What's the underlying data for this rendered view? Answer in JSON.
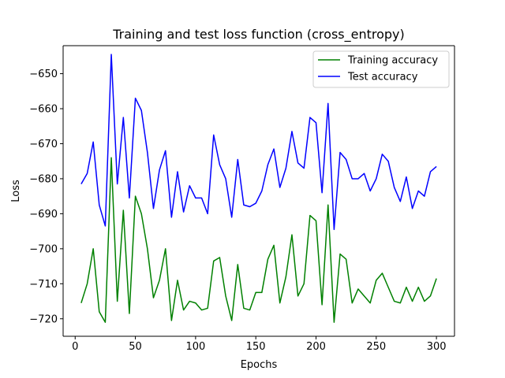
{
  "chart_data": {
    "type": "line",
    "title": "Training and test loss function (cross_entropy)",
    "xlabel": "Epochs",
    "ylabel": "Loss",
    "xlim": [
      -10,
      315
    ],
    "ylim": [
      -725,
      -642
    ],
    "xticks": [
      0,
      50,
      100,
      150,
      200,
      250,
      300
    ],
    "yticks": [
      -650,
      -660,
      -670,
      -680,
      -690,
      -700,
      -710,
      -720
    ],
    "legend_position": "top-right",
    "grid": false,
    "x": [
      5,
      10,
      15,
      20,
      25,
      30,
      35,
      40,
      45,
      50,
      55,
      60,
      65,
      70,
      75,
      80,
      85,
      90,
      95,
      100,
      105,
      110,
      115,
      120,
      125,
      130,
      135,
      140,
      145,
      150,
      155,
      160,
      165,
      170,
      175,
      180,
      185,
      190,
      195,
      200,
      205,
      210,
      215,
      220,
      225,
      230,
      235,
      240,
      245,
      250,
      255,
      260,
      265,
      270,
      275,
      280,
      285,
      290,
      295,
      300
    ],
    "series": [
      {
        "name": "Training accuracy",
        "color": "#008000",
        "values": [
          -715.5,
          -710,
          -700,
          -718,
          -721,
          -674,
          -715,
          -689,
          -718.5,
          -685,
          -690,
          -700,
          -714,
          -709,
          -700,
          -720.5,
          -709,
          -717.5,
          -715,
          -715.5,
          -717.5,
          -717,
          -703.5,
          -702.5,
          -713.5,
          -720.5,
          -704.5,
          -717,
          -717.5,
          -712.5,
          -712.5,
          -703,
          -699,
          -715.5,
          -708,
          -696,
          -713.5,
          -710,
          -690.5,
          -692,
          -716,
          -687.5,
          -721,
          -701.5,
          -703,
          -715.5,
          -711.5,
          -713.5,
          -715.5,
          -709,
          -707,
          -711,
          -715,
          -715.5,
          -711,
          -715,
          -711,
          -715,
          -713.5,
          -708.5
        ]
      },
      {
        "name": "Test accuracy",
        "color": "#0000ff",
        "values": [
          -681.5,
          -678.5,
          -669.5,
          -687.5,
          -693.5,
          -644.5,
          -681.5,
          -662.5,
          -685.5,
          -657,
          -660.5,
          -672.5,
          -688.5,
          -677.5,
          -672,
          -691,
          -678,
          -689.5,
          -682,
          -685.5,
          -685.5,
          -690,
          -667.5,
          -676,
          -680,
          -691,
          -674.5,
          -687.5,
          -688,
          -687,
          -683.5,
          -676,
          -671.5,
          -682.5,
          -677,
          -666.5,
          -675.5,
          -677,
          -662.5,
          -664,
          -684,
          -658.5,
          -694.5,
          -672.5,
          -674.5,
          -680,
          -680,
          -678.5,
          -683.5,
          -680,
          -673,
          -675,
          -682.5,
          -686.5,
          -679.5,
          -688.5,
          -683.5,
          -685,
          -678,
          -676.5
        ]
      }
    ]
  }
}
